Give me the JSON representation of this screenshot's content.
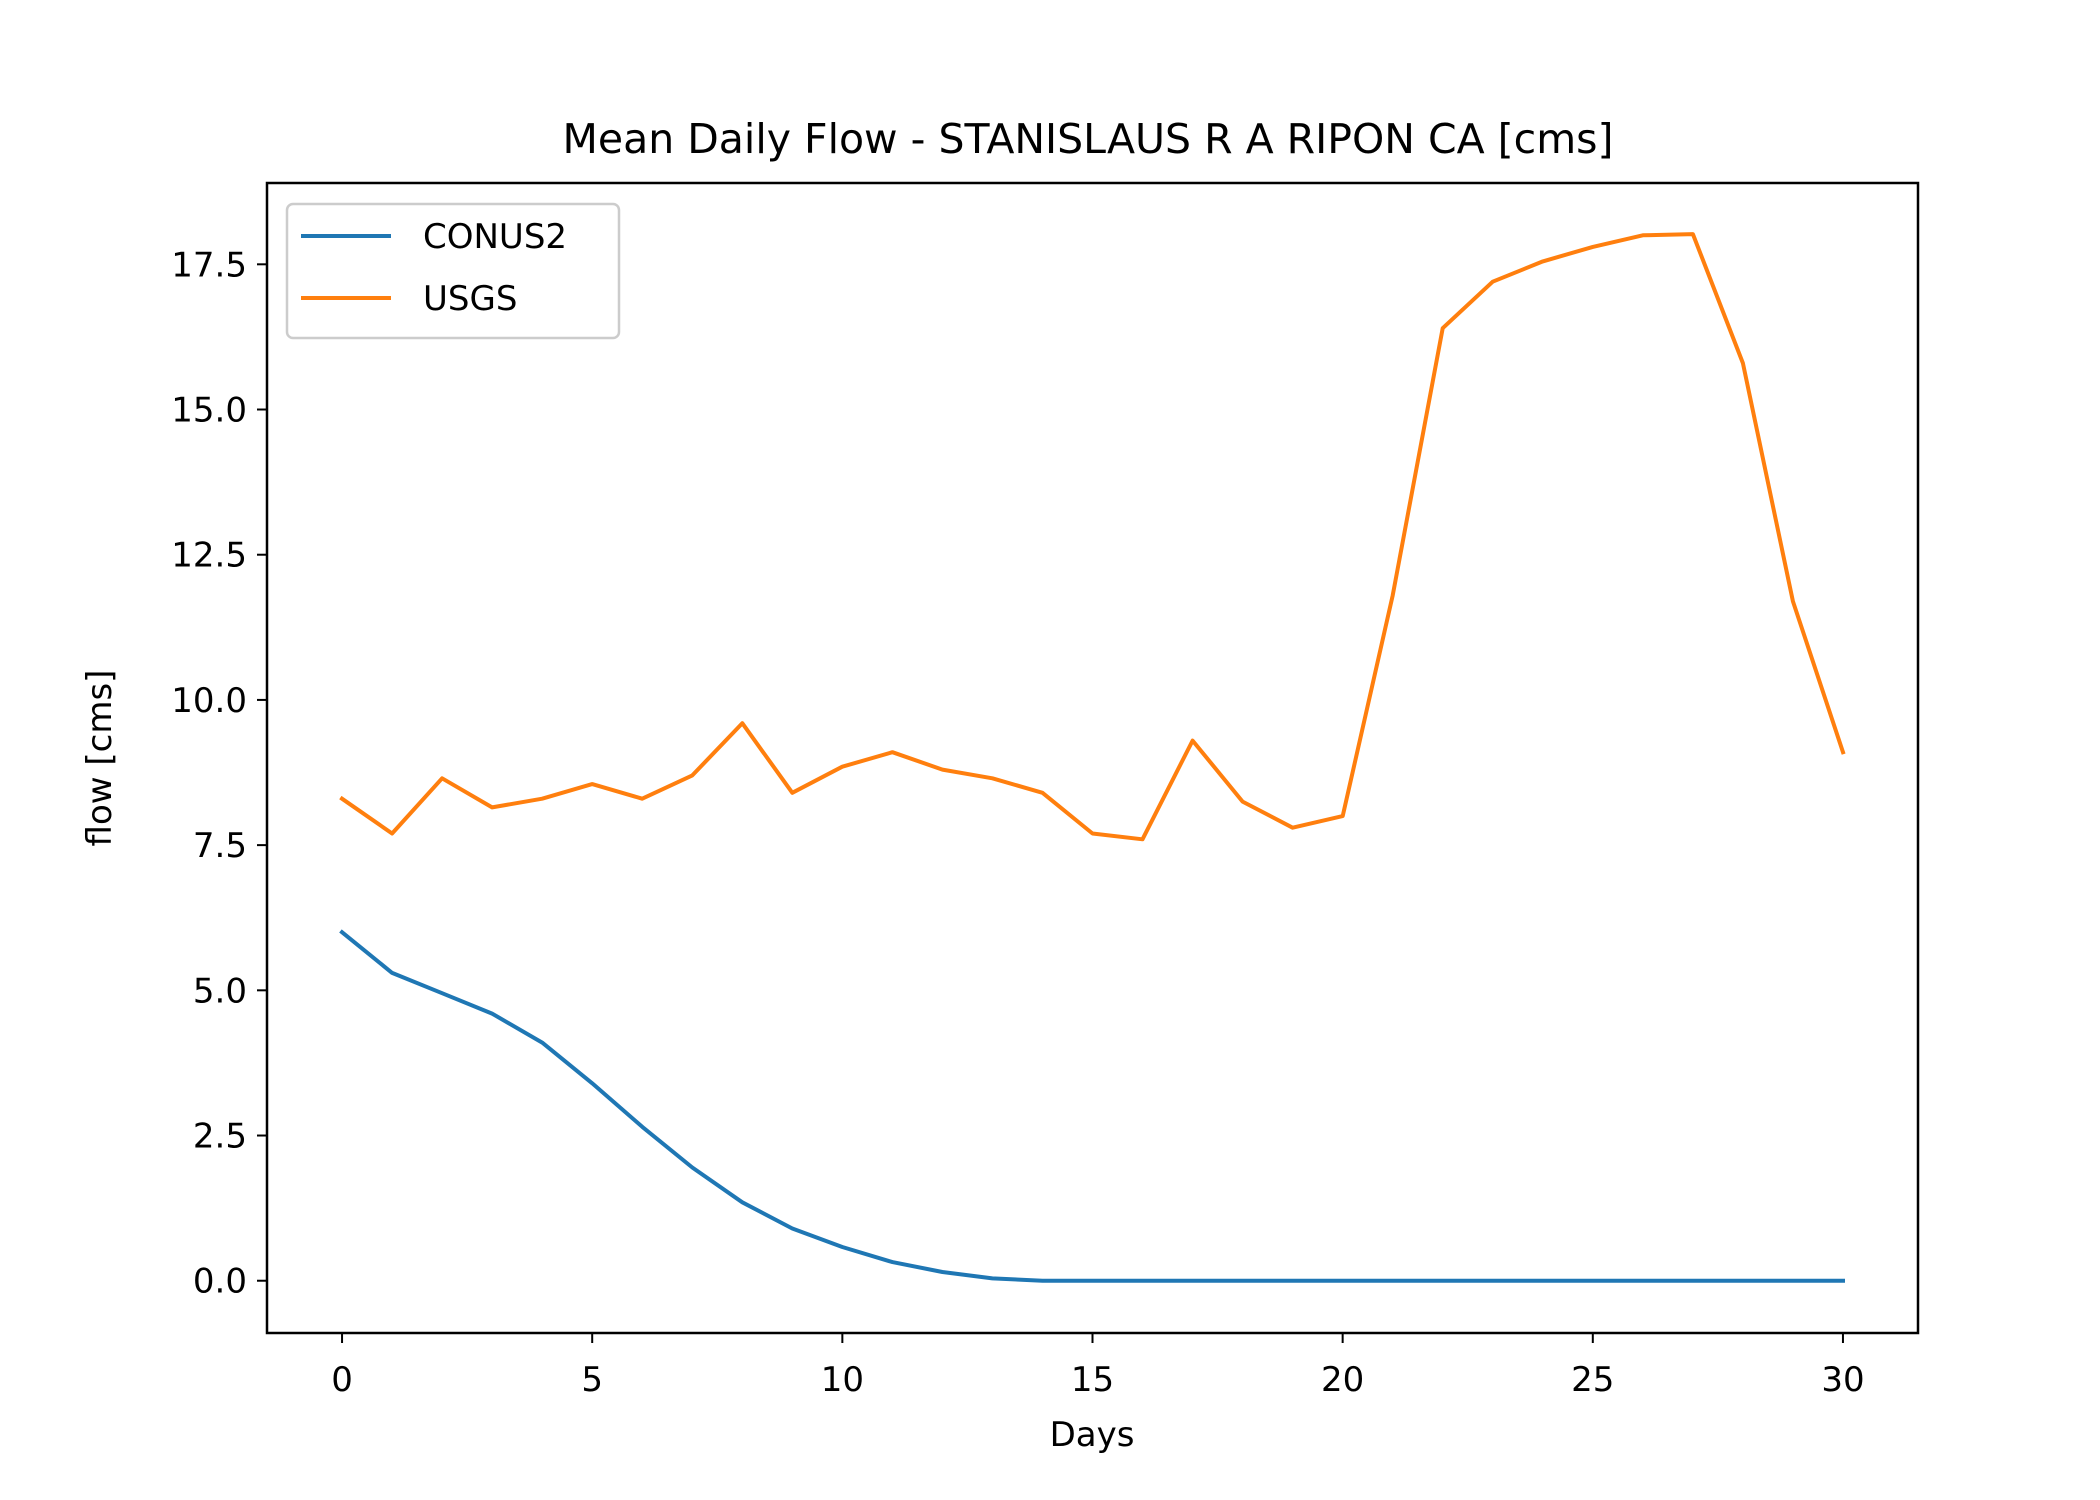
{
  "chart_data": {
    "type": "line",
    "title": "Mean Daily Flow - STANISLAUS R A RIPON CA [cms]",
    "xlabel": "Days",
    "ylabel": "flow [cms]",
    "xlim": [
      -1.5,
      31.5
    ],
    "ylim": [
      -0.9,
      18.9
    ],
    "xticks": [
      0,
      5,
      10,
      15,
      20,
      25,
      30
    ],
    "xtick_labels": [
      "0",
      "5",
      "10",
      "15",
      "20",
      "25",
      "30"
    ],
    "yticks": [
      0,
      2.5,
      5,
      7.5,
      10,
      12.5,
      15,
      17.5
    ],
    "ytick_labels": [
      "0.0",
      "2.5",
      "5.0",
      "7.5",
      "10.0",
      "12.5",
      "15.0",
      "17.5"
    ],
    "grid": false,
    "legend_position": "upper-left",
    "x": [
      0,
      1,
      2,
      3,
      4,
      5,
      6,
      7,
      8,
      9,
      10,
      11,
      12,
      13,
      14,
      15,
      16,
      17,
      18,
      19,
      20,
      21,
      22,
      23,
      24,
      25,
      26,
      27,
      28,
      29,
      30
    ],
    "series": [
      {
        "name": "CONUS2",
        "color": "#1f77b4",
        "values": [
          6.0,
          5.3,
          4.95,
          4.6,
          4.1,
          3.4,
          2.65,
          1.95,
          1.35,
          0.9,
          0.58,
          0.32,
          0.15,
          0.04,
          0.0,
          0.0,
          0.0,
          0.0,
          0.0,
          0.0,
          0.0,
          0.0,
          0.0,
          0.0,
          0.0,
          0.0,
          0.0,
          0.0,
          0.0,
          0.0,
          0.0
        ]
      },
      {
        "name": "USGS",
        "color": "#ff7f0e",
        "values": [
          8.3,
          7.7,
          8.65,
          8.15,
          8.3,
          8.55,
          8.3,
          8.7,
          9.6,
          8.4,
          8.85,
          9.1,
          8.8,
          8.65,
          8.4,
          7.7,
          7.6,
          9.3,
          8.25,
          7.8,
          8.0,
          11.8,
          16.4,
          17.2,
          17.55,
          17.8,
          18.0,
          18.02,
          15.8,
          11.7,
          9.1
        ]
      }
    ]
  }
}
